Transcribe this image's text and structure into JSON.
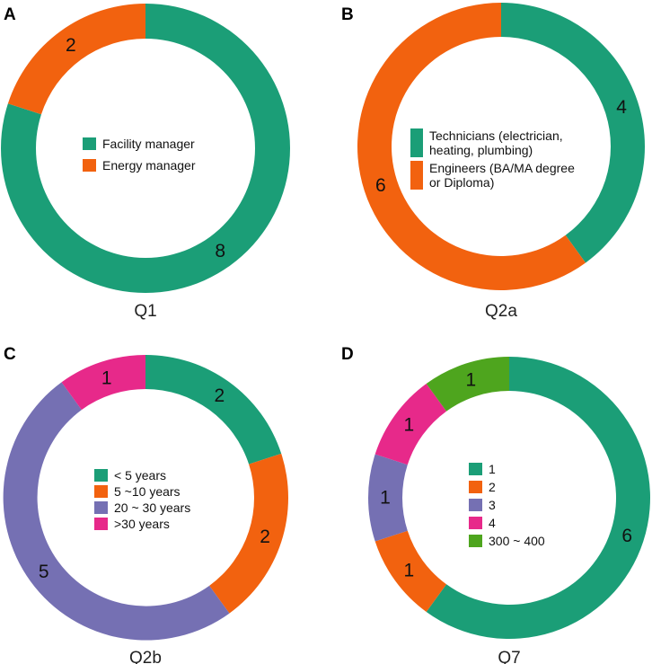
{
  "colors": {
    "green": "#1b9e77",
    "orange": "#f2620f",
    "purple": "#7570b3",
    "pink": "#e7298a",
    "lime": "#4ea51e"
  },
  "chart_data": [
    {
      "type": "pie",
      "panel": "A",
      "title": "Q1",
      "slices": [
        {
          "label": "Facility manager",
          "value": 8,
          "color": "green"
        },
        {
          "label": "Energy manager",
          "value": 2,
          "color": "orange"
        }
      ],
      "legend": [
        {
          "lines": [
            "Facility manager"
          ],
          "color": "green"
        },
        {
          "lines": [
            "Energy manager"
          ],
          "color": "orange"
        }
      ]
    },
    {
      "type": "pie",
      "panel": "B",
      "title": "Q2a",
      "slices": [
        {
          "label": "Technicians (electrician, heating, plumbing)",
          "value": 4,
          "color": "green"
        },
        {
          "label": "Engineers (BA/MA degree or Diploma)",
          "value": 6,
          "color": "orange"
        }
      ],
      "legend": [
        {
          "lines": [
            "Technicians (electrician,",
            "heating, plumbing)"
          ],
          "color": "green"
        },
        {
          "lines": [
            "Engineers (BA/MA degree",
            "or Diploma)"
          ],
          "color": "orange"
        }
      ]
    },
    {
      "type": "pie",
      "panel": "C",
      "title": "Q2b",
      "slices": [
        {
          "label": "< 5 years",
          "value": 2,
          "color": "green"
        },
        {
          "label": "5 ~10 years",
          "value": 2,
          "color": "orange"
        },
        {
          "label": "20 ~ 30 years",
          "value": 5,
          "color": "purple"
        },
        {
          "label": ">30 years",
          "value": 1,
          "color": "pink"
        }
      ],
      "legend": [
        {
          "lines": [
            "< 5 years"
          ],
          "color": "green"
        },
        {
          "lines": [
            "5 ~10 years"
          ],
          "color": "orange"
        },
        {
          "lines": [
            "20 ~ 30 years"
          ],
          "color": "purple"
        },
        {
          "lines": [
            ">30 years"
          ],
          "color": "pink"
        }
      ]
    },
    {
      "type": "pie",
      "panel": "D",
      "title": "Q7",
      "slices": [
        {
          "label": "1",
          "value": 6,
          "color": "green"
        },
        {
          "label": "2",
          "value": 1,
          "color": "orange"
        },
        {
          "label": "3",
          "value": 1,
          "color": "purple"
        },
        {
          "label": "4",
          "value": 1,
          "color": "pink"
        },
        {
          "label": "300 ~ 400",
          "value": 1,
          "color": "lime"
        }
      ],
      "legend": [
        {
          "lines": [
            "1"
          ],
          "color": "green"
        },
        {
          "lines": [
            "2"
          ],
          "color": "orange"
        },
        {
          "lines": [
            "3"
          ],
          "color": "purple"
        },
        {
          "lines": [
            "4"
          ],
          "color": "pink"
        },
        {
          "lines": [
            "300 ~ 400"
          ],
          "color": "lime"
        }
      ]
    }
  ]
}
